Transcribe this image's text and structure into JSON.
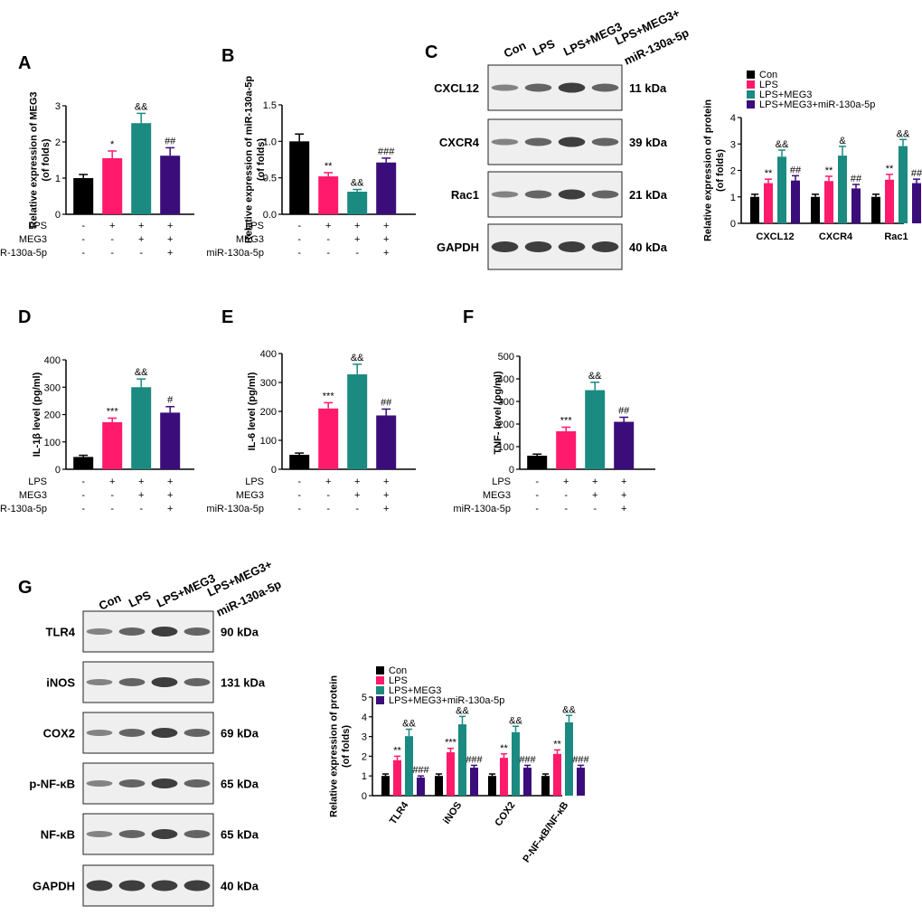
{
  "colors": {
    "con": "#000000",
    "lps": "#ff1a6c",
    "lps_meg3": "#1b8a80",
    "lps_meg3_mir": "#3a0d7a"
  },
  "condition_labels": [
    "LPS",
    "MEG3",
    "miR-130a-5p"
  ],
  "condition_signs": [
    [
      "-",
      "+",
      "+",
      "+"
    ],
    [
      "-",
      "-",
      "+",
      "+"
    ],
    [
      "-",
      "-",
      "-",
      "+"
    ]
  ],
  "legend": [
    "Con",
    "LPS",
    "LPS+MEG3",
    "LPS+MEG3+miR-130a-5p"
  ],
  "chart_data": [
    {
      "panel": "A",
      "type": "bar",
      "ylabel": "Relative expression of MEG3 (of folds)",
      "ylim": [
        0,
        3
      ],
      "yticks": [
        "0",
        "1",
        "2",
        "3"
      ],
      "values": [
        1.0,
        1.55,
        2.52,
        1.62
      ],
      "errors": [
        0.1,
        0.2,
        0.27,
        0.22
      ],
      "sig": [
        "",
        "*",
        "&&",
        "##"
      ]
    },
    {
      "panel": "B",
      "type": "bar",
      "ylabel": "Relative expression of miR-130a-5p (of folds)",
      "ylim": [
        0,
        1.5
      ],
      "yticks": [
        "0.0",
        "0.5",
        "1.0",
        "1.5"
      ],
      "values": [
        1.0,
        0.52,
        0.31,
        0.71
      ],
      "errors": [
        0.1,
        0.05,
        0.03,
        0.06
      ],
      "sig": [
        "",
        "**",
        "&&",
        "###"
      ]
    },
    {
      "panel": "C",
      "type": "bar",
      "ylabel": "Relative expression of  protein (of folds)",
      "ylim": [
        0,
        4
      ],
      "yticks": [
        "0",
        "1",
        "2",
        "3",
        "4"
      ],
      "categories": [
        "CXCL12",
        "CXCR4",
        "Rac1"
      ],
      "series": [
        {
          "name": "Con",
          "values": [
            1.0,
            1.0,
            1.0
          ],
          "errors": [
            0.1,
            0.1,
            0.1
          ],
          "sig": [
            "",
            "",
            ""
          ]
        },
        {
          "name": "LPS",
          "values": [
            1.52,
            1.6,
            1.65
          ],
          "errors": [
            0.15,
            0.18,
            0.2
          ],
          "sig": [
            "**",
            "**",
            "**"
          ]
        },
        {
          "name": "LPS+MEG3",
          "values": [
            2.52,
            2.56,
            2.92
          ],
          "errors": [
            0.25,
            0.35,
            0.25
          ],
          "sig": [
            "&&",
            "&",
            "&&"
          ]
        },
        {
          "name": "LPS+MEG3+miR-130a-5p",
          "values": [
            1.62,
            1.32,
            1.52
          ],
          "errors": [
            0.18,
            0.15,
            0.15
          ],
          "sig": [
            "##",
            "##",
            "##"
          ]
        }
      ]
    },
    {
      "panel": "D",
      "type": "bar",
      "ylabel": "IL-1β level (pg/ml)",
      "ylim": [
        0,
        400
      ],
      "yticks": [
        "0",
        "100",
        "200",
        "300",
        "400"
      ],
      "values": [
        45,
        172,
        300,
        207
      ],
      "errors": [
        6,
        15,
        30,
        22
      ],
      "sig": [
        "",
        "***",
        "&&",
        "#"
      ]
    },
    {
      "panel": "E",
      "type": "bar",
      "ylabel": "IL-6 level (pg/ml)",
      "ylim": [
        0,
        400
      ],
      "yticks": [
        "0",
        "100",
        "200",
        "300",
        "400"
      ],
      "values": [
        50,
        210,
        328,
        186
      ],
      "errors": [
        6,
        20,
        35,
        22
      ],
      "sig": [
        "",
        "***",
        "&&",
        "##"
      ]
    },
    {
      "panel": "F",
      "type": "bar",
      "ylabel": "TNF- level (pg/ml)",
      "ylim": [
        0,
        500
      ],
      "yticks": [
        "0",
        "100",
        "200",
        "300",
        "400",
        "500"
      ],
      "values": [
        60,
        168,
        350,
        210
      ],
      "errors": [
        7,
        18,
        35,
        20
      ],
      "sig": [
        "",
        "***",
        "&&",
        "##"
      ]
    },
    {
      "panel": "G",
      "type": "bar",
      "ylabel": "Relative expression of  protein (of folds)",
      "ylim": [
        0,
        5
      ],
      "yticks": [
        "0",
        "1",
        "2",
        "3",
        "4",
        "5"
      ],
      "categories": [
        "TLR4",
        "iNOS",
        "COX2",
        "P-NF-κB/NF-κB"
      ],
      "series": [
        {
          "name": "Con",
          "values": [
            1.0,
            1.0,
            1.0,
            1.0
          ],
          "errors": [
            0.1,
            0.1,
            0.1,
            0.1
          ],
          "sig": [
            "",
            "",
            "",
            ""
          ]
        },
        {
          "name": "LPS",
          "values": [
            1.8,
            2.2,
            1.92,
            2.12
          ],
          "errors": [
            0.2,
            0.2,
            0.2,
            0.2
          ],
          "sig": [
            "**",
            "***",
            "**",
            "**"
          ]
        },
        {
          "name": "LPS+MEG3",
          "values": [
            3.02,
            3.62,
            3.22,
            3.72
          ],
          "errors": [
            0.35,
            0.4,
            0.3,
            0.35
          ],
          "sig": [
            "&&",
            "&&",
            "&&",
            "&&"
          ]
        },
        {
          "name": "LPS+MEG3+miR-130a-5p",
          "values": [
            0.92,
            1.42,
            1.42,
            1.42
          ],
          "errors": [
            0.08,
            0.12,
            0.12,
            0.12
          ],
          "sig": [
            "###",
            "###",
            "###",
            "###"
          ]
        }
      ]
    }
  ],
  "blots": {
    "C": {
      "lanes": [
        "Con",
        "LPS",
        "LPS+MEG3",
        "LPS+MEG3+",
        "miR-130a-5p"
      ],
      "rows": [
        {
          "protein": "CXCL12",
          "kda": "11 kDa"
        },
        {
          "protein": "CXCR4",
          "kda": "39 kDa"
        },
        {
          "protein": "Rac1",
          "kda": "21 kDa"
        },
        {
          "protein": "GAPDH",
          "kda": "40 kDa"
        }
      ]
    },
    "G": {
      "lanes": [
        "Con",
        "LPS",
        "LPS+MEG3",
        "LPS+MEG3+",
        "miR-130a-5p"
      ],
      "rows": [
        {
          "protein": "TLR4",
          "kda": "90 kDa"
        },
        {
          "protein": "iNOS",
          "kda": "131 kDa"
        },
        {
          "protein": "COX2",
          "kda": "69 kDa"
        },
        {
          "protein": "p-NF-κB",
          "kda": "65 kDa"
        },
        {
          "protein": "NF-κB",
          "kda": "65 kDa"
        },
        {
          "protein": "GAPDH",
          "kda": "40 kDa"
        }
      ]
    }
  }
}
